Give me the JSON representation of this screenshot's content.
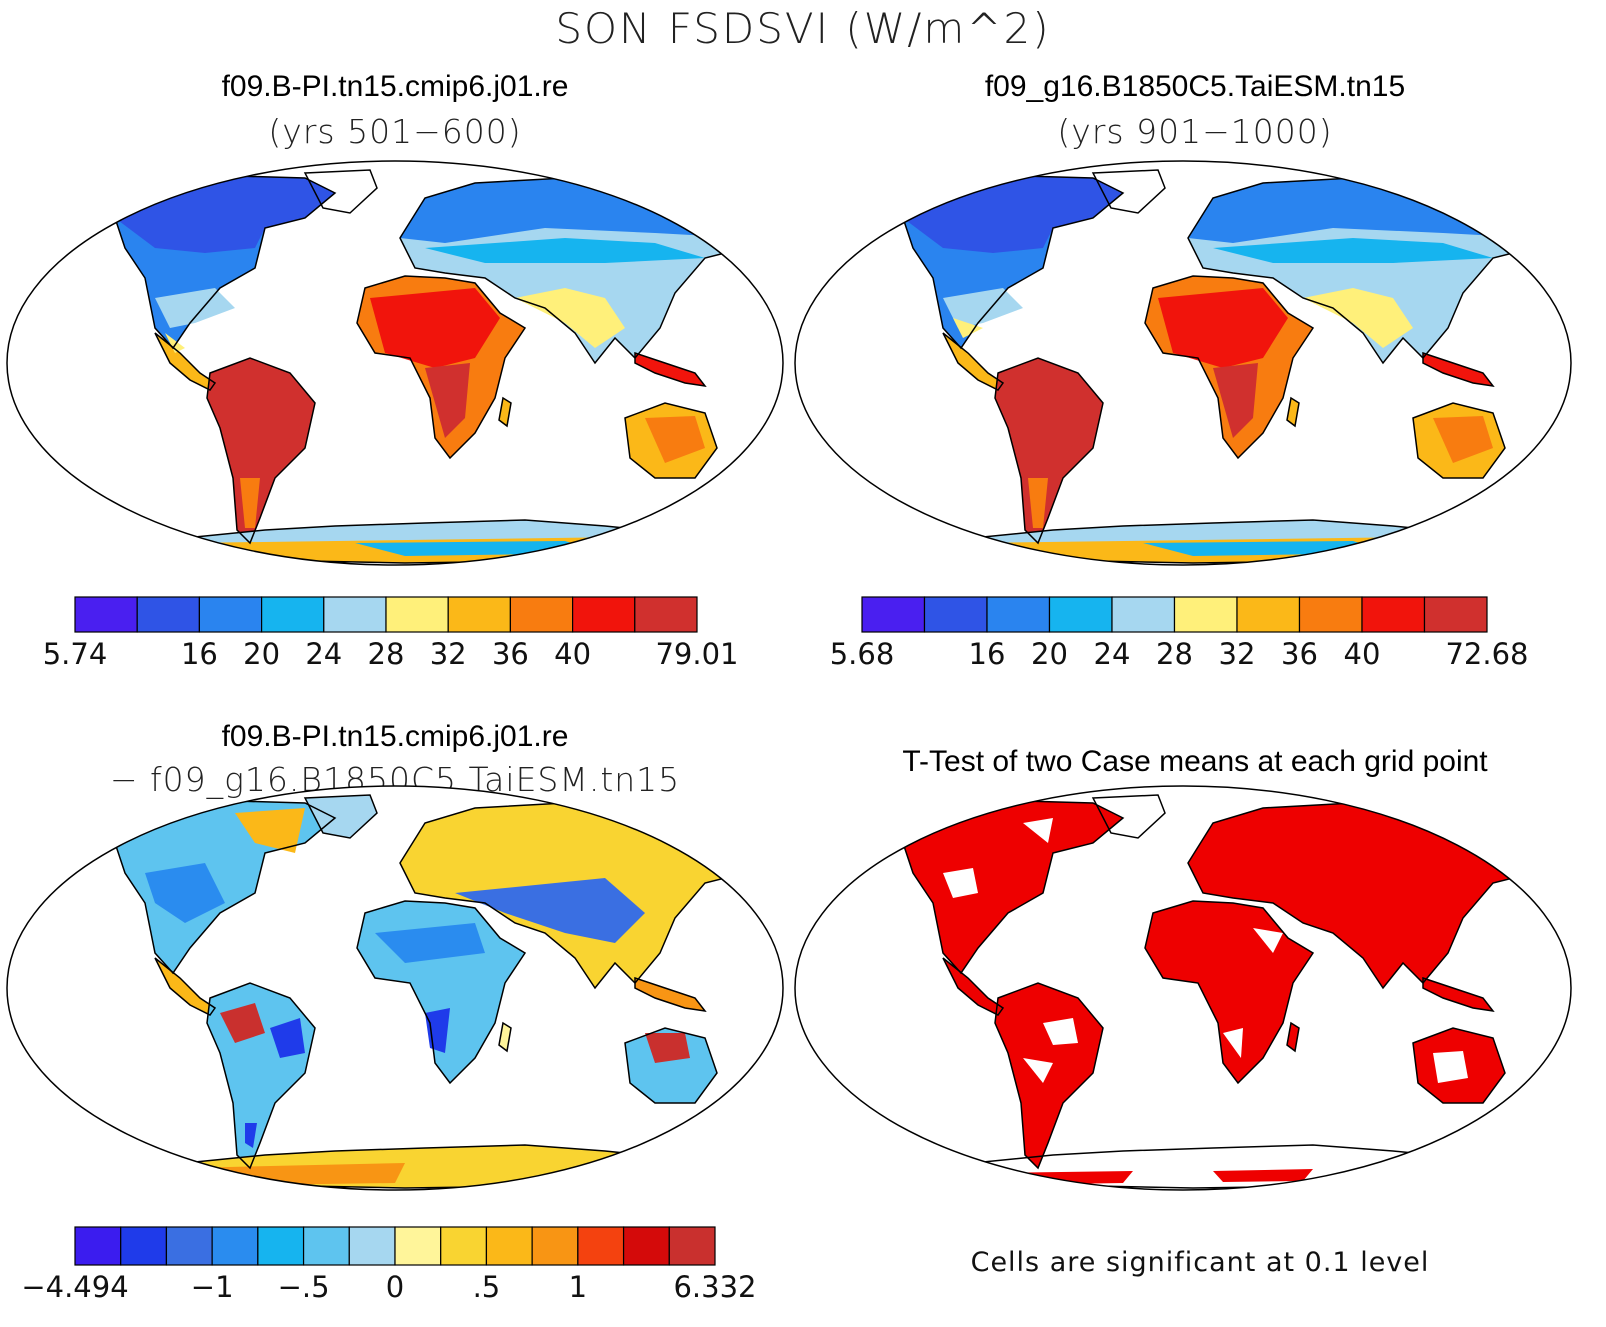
{
  "figure": {
    "title": "SON FSDSVI (W/m^2)",
    "panels": [
      {
        "title": "f09.B-PI.tn15.cmip6.j01.re",
        "subtitle": "(yrs 501−600)",
        "colorbar": {
          "colors": [
            "#4a1ff0",
            "#2f54e6",
            "#2a84ef",
            "#16b4ef",
            "#a6d7f0",
            "#fff07a",
            "#fbb818",
            "#f87c10",
            "#f1140c",
            "#d0302e"
          ],
          "labels": [
            "5.74",
            "",
            "16",
            "20",
            "24",
            "28",
            "32",
            "36",
            "40",
            "",
            "79.01"
          ]
        }
      },
      {
        "title": "f09_g16.B1850C5.TaiESM.tn15",
        "subtitle": "(yrs 901−1000)",
        "colorbar": {
          "colors": [
            "#4a1ff0",
            "#2f54e6",
            "#2a84ef",
            "#16b4ef",
            "#a6d7f0",
            "#fff07a",
            "#fbb818",
            "#f87c10",
            "#f1140c",
            "#d0302e"
          ],
          "labels": [
            "5.68",
            "",
            "16",
            "20",
            "24",
            "28",
            "32",
            "36",
            "40",
            "",
            "72.68"
          ]
        }
      },
      {
        "title": "f09.B-PI.tn15.cmip6.j01.re",
        "subtitle": "− f09_g16.B1850C5.TaiESM.tn15",
        "colorbar": {
          "colors": [
            "#3b1cef",
            "#1f3bea",
            "#3a6fe2",
            "#2a8cef",
            "#16b4ef",
            "#5ec4ef",
            "#a6d7f0",
            "#fff59a",
            "#f9d431",
            "#fbb818",
            "#f89514",
            "#f4420f",
            "#d40a0a",
            "#c9302e"
          ],
          "labels": [
            "−4.494",
            "",
            "",
            "−1",
            "",
            "−.5",
            "",
            "0",
            "",
            ".5",
            "",
            "1",
            "",
            "",
            "6.332"
          ]
        }
      },
      {
        "title": "T-Test of two Case means at each grid point",
        "note": "Cells are significant at 0.1 level",
        "significant_color": "#ee0000"
      }
    ]
  }
}
